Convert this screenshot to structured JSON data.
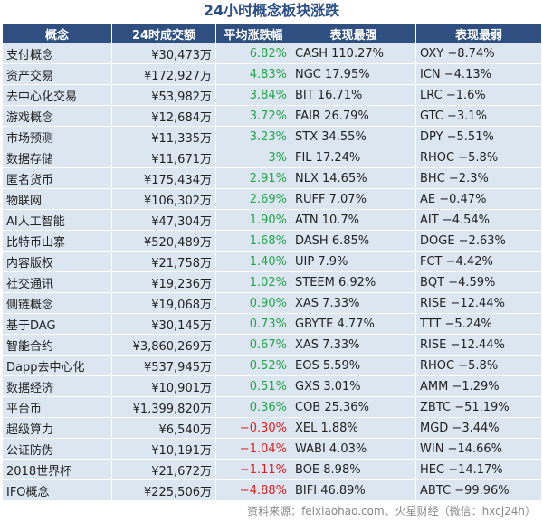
{
  "title": "24小时概念板块涨跌",
  "headers": [
    "概念",
    "24时成交额",
    "平均涨跌幅",
    "表现最强",
    "表现最弱"
  ],
  "rows": [
    {
      "name": "支付概念",
      "volume": "¥30,473万",
      "change": "6.82%",
      "best": "CASH 110.27%",
      "worst": "OXY −8.74%",
      "dir": "pos"
    },
    {
      "name": "资产交易",
      "volume": "¥172,927万",
      "change": "4.83%",
      "best": "NGC 17.95%",
      "worst": "ICN −4.13%",
      "dir": "pos"
    },
    {
      "name": "去中心化交易",
      "volume": "¥53,982万",
      "change": "3.84%",
      "best": "BIT 16.71%",
      "worst": "LRC −1.6%",
      "dir": "pos"
    },
    {
      "name": "游戏概念",
      "volume": "¥12,684万",
      "change": "3.72%",
      "best": "FAIR 26.79%",
      "worst": "GTC −3.1%",
      "dir": "pos"
    },
    {
      "name": "市场预测",
      "volume": "¥11,335万",
      "change": "3.23%",
      "best": "STX 34.55%",
      "worst": "DPY −5.51%",
      "dir": "pos"
    },
    {
      "name": "数据存储",
      "volume": "¥11,671万",
      "change": "3%",
      "best": "FIL 17.24%",
      "worst": "RHOC −5.8%",
      "dir": "pos"
    },
    {
      "name": "匿名货币",
      "volume": "¥175,434万",
      "change": "2.91%",
      "best": "NLX 14.65%",
      "worst": "BHC −2.3%",
      "dir": "pos"
    },
    {
      "name": "物联网",
      "volume": "¥106,302万",
      "change": "2.69%",
      "best": "RUFF 7.07%",
      "worst": "AE −0.47%",
      "dir": "pos"
    },
    {
      "name": "AI人工智能",
      "volume": "¥47,304万",
      "change": "1.90%",
      "best": "ATN 10.7%",
      "worst": "AIT −4.54%",
      "dir": "pos"
    },
    {
      "name": "比特币山寨",
      "volume": "¥520,489万",
      "change": "1.68%",
      "best": "DASH 6.85%",
      "worst": "DOGE −2.63%",
      "dir": "pos"
    },
    {
      "name": "内容版权",
      "volume": "¥21,758万",
      "change": "1.40%",
      "best": "UIP 7.9%",
      "worst": "FCT −4.42%",
      "dir": "pos"
    },
    {
      "name": "社交通讯",
      "volume": "¥19,236万",
      "change": "1.02%",
      "best": "STEEM 6.92%",
      "worst": "BQT −4.59%",
      "dir": "pos"
    },
    {
      "name": "侧链概念",
      "volume": "¥19,068万",
      "change": "0.90%",
      "best": "XAS 7.33%",
      "worst": "RISE −12.44%",
      "dir": "pos"
    },
    {
      "name": "基于DAG",
      "volume": "¥30,145万",
      "change": "0.73%",
      "best": "GBYTE 4.77%",
      "worst": "TTT −5.24%",
      "dir": "pos"
    },
    {
      "name": "智能合约",
      "volume": "¥3,860,269万",
      "change": "0.67%",
      "best": "XAS 7.33%",
      "worst": "RISE −12.44%",
      "dir": "pos"
    },
    {
      "name": "Dapp去中心化",
      "volume": "¥537,945万",
      "change": "0.52%",
      "best": "EOS 5.59%",
      "worst": "RHOC −5.8%",
      "dir": "pos"
    },
    {
      "name": "数据经济",
      "volume": "¥10,901万",
      "change": "0.51%",
      "best": "GXS 3.01%",
      "worst": "AMM −1.29%",
      "dir": "pos"
    },
    {
      "name": "平台币",
      "volume": "¥1,399,820万",
      "change": "0.36%",
      "best": "COB 25.36%",
      "worst": "ZBTC −51.19%",
      "dir": "pos"
    },
    {
      "name": "超级算力",
      "volume": "¥6,540万",
      "change": "−0.30%",
      "best": "XEL 1.88%",
      "worst": "MGD −3.44%",
      "dir": "neg"
    },
    {
      "name": "公证防伪",
      "volume": "¥10,191万",
      "change": "−1.04%",
      "best": "WABI 4.03%",
      "worst": "WIN −14.66%",
      "dir": "neg"
    },
    {
      "name": "2018世界杯",
      "volume": "¥21,672万",
      "change": "−1.11%",
      "best": "BOE 8.98%",
      "worst": "HEC −14.17%",
      "dir": "neg"
    },
    {
      "name": "IFO概念",
      "volume": "¥225,506万",
      "change": "−4.88%",
      "best": "BIFI 46.89%",
      "worst": "ABTC −99.96%",
      "dir": "neg"
    }
  ],
  "footer": "资料来源：feixiaohao.com、火星财经（微信：hxcj24h）",
  "colors": {
    "header_bg": "#2e4f7f",
    "row_bg": "#dce6f1",
    "positive": "#21a64a",
    "negative": "#e02020",
    "title": "#2b4f86"
  }
}
